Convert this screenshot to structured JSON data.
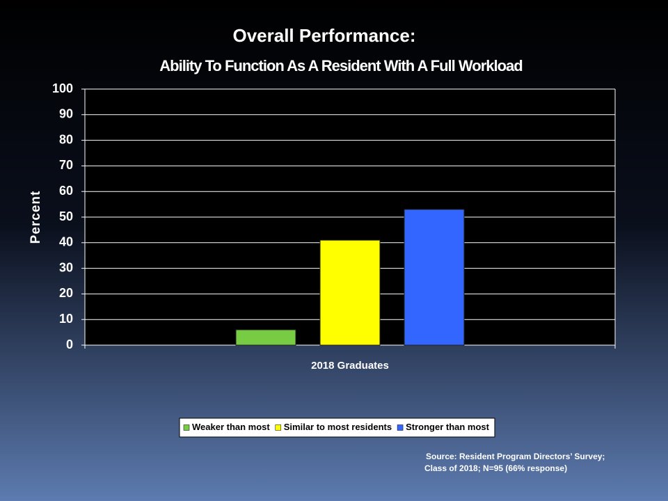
{
  "chart_data": {
    "type": "bar",
    "title": "Overall Performance:",
    "subtitle": "Ability To Function As A Resident With A  Full Workload",
    "y_label": "Percent",
    "categories": [
      "2018 Graduates"
    ],
    "series": [
      {
        "name": "Weaker than most",
        "color": "#77cc44",
        "values": [
          6
        ]
      },
      {
        "name": "Similar to most residents",
        "color": "#ffff00",
        "values": [
          41
        ]
      },
      {
        "name": "Stronger than most",
        "color": "#3366ff",
        "values": [
          53
        ]
      }
    ],
    "ylim": [
      0,
      100
    ],
    "yticks": [
      0,
      10,
      20,
      30,
      40,
      50,
      60,
      70,
      80,
      90,
      100
    ],
    "grid": true,
    "legend": "bottom",
    "notes": [
      "Source: Resident Program Directors’ Survey;",
      "Class of 2018; N=95 (66%  response)"
    ]
  }
}
